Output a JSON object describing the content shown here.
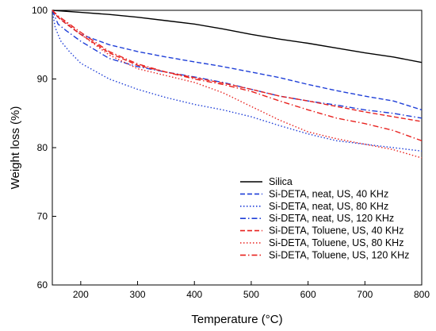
{
  "chart_data": {
    "type": "line",
    "title": "",
    "xlabel": "Temperature (°C)",
    "ylabel": "Weight loss (%)",
    "xlim": [
      150,
      800
    ],
    "ylim": [
      60,
      100
    ],
    "xticks": [
      200,
      300,
      400,
      500,
      600,
      700,
      800
    ],
    "yticks": [
      60,
      70,
      80,
      90,
      100
    ],
    "grid": false,
    "legend": "bottom-right",
    "series": [
      {
        "name": "Silica",
        "color": "#000000",
        "dash": "solid",
        "x": [
          150,
          200,
          250,
          300,
          350,
          400,
          450,
          500,
          550,
          600,
          650,
          700,
          750,
          800
        ],
        "y": [
          100,
          99.7,
          99.4,
          99.0,
          98.5,
          98.0,
          97.3,
          96.5,
          95.8,
          95.2,
          94.5,
          93.8,
          93.2,
          92.4
        ]
      },
      {
        "name": "Si-DETA, neat, US, 40 KHz",
        "color": "#1f3fd8",
        "dash": "dashed",
        "x": [
          150,
          160,
          175,
          200,
          250,
          300,
          350,
          400,
          450,
          500,
          550,
          600,
          650,
          700,
          750,
          800
        ],
        "y": [
          100,
          99.0,
          98.0,
          96.5,
          95.0,
          94.0,
          93.2,
          92.5,
          91.8,
          91.0,
          90.2,
          89.2,
          88.3,
          87.5,
          86.8,
          85.5
        ]
      },
      {
        "name": "Si-DETA, neat, US, 80 KHz",
        "color": "#1f3fd8",
        "dash": "dotted",
        "x": [
          150,
          155,
          165,
          180,
          200,
          250,
          300,
          350,
          400,
          450,
          500,
          550,
          600,
          650,
          700,
          750,
          800
        ],
        "y": [
          100,
          97.5,
          95.5,
          94.0,
          92.3,
          90.0,
          88.5,
          87.3,
          86.3,
          85.5,
          84.5,
          83.2,
          82.0,
          81.0,
          80.5,
          80.0,
          79.5
        ]
      },
      {
        "name": "Si-DETA, neat, US, 120 KHz",
        "color": "#1f3fd8",
        "dash": "dashdot",
        "x": [
          150,
          160,
          175,
          200,
          250,
          300,
          350,
          400,
          450,
          500,
          550,
          600,
          650,
          700,
          750,
          800
        ],
        "y": [
          100,
          98.0,
          97.0,
          95.5,
          93.0,
          91.8,
          91.0,
          90.3,
          89.5,
          88.5,
          87.5,
          86.8,
          86.2,
          85.5,
          85.0,
          84.3
        ]
      },
      {
        "name": "Si-DETA, Toluene, US, 40 KHz",
        "color": "#e8221f",
        "dash": "dashed",
        "x": [
          150,
          160,
          175,
          200,
          250,
          300,
          350,
          400,
          450,
          500,
          550,
          600,
          650,
          700,
          750,
          800
        ],
        "y": [
          100,
          99.0,
          98.0,
          96.5,
          93.8,
          92.0,
          91.0,
          90.2,
          89.4,
          88.5,
          87.5,
          86.8,
          86.0,
          85.2,
          84.5,
          83.8
        ]
      },
      {
        "name": "Si-DETA, Toluene, US, 80 KHz",
        "color": "#e8221f",
        "dash": "dotted",
        "x": [
          150,
          160,
          175,
          200,
          250,
          300,
          350,
          400,
          450,
          500,
          550,
          600,
          650,
          700,
          750,
          800
        ],
        "y": [
          100,
          99.0,
          98.2,
          96.5,
          93.5,
          91.5,
          90.5,
          89.5,
          88.0,
          86.0,
          84.0,
          82.3,
          81.3,
          80.5,
          79.7,
          78.5
        ]
      },
      {
        "name": "Si-DETA, Toluene, US, 120 KHz",
        "color": "#e8221f",
        "dash": "dashdot",
        "x": [
          150,
          160,
          175,
          200,
          250,
          300,
          350,
          400,
          450,
          500,
          550,
          600,
          650,
          700,
          750,
          800
        ],
        "y": [
          100,
          99.2,
          98.3,
          96.8,
          94.0,
          92.2,
          91.0,
          90.0,
          89.2,
          88.2,
          86.8,
          85.5,
          84.3,
          83.5,
          82.5,
          81.0
        ]
      }
    ]
  }
}
